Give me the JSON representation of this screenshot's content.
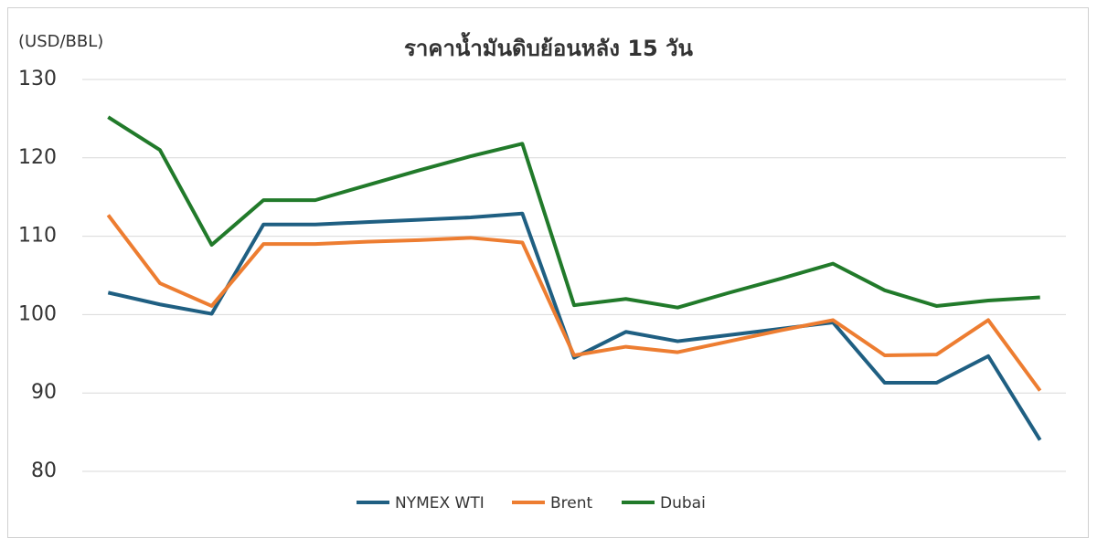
{
  "chart_data": {
    "type": "line",
    "title": "ราคาน้ำมันดิบย้อนหลัง 15 วัน",
    "y_label": "(USD/BBL)",
    "categories": [
      null,
      null,
      null,
      null,
      null,
      null,
      null,
      null,
      null,
      null,
      null,
      null,
      null,
      null,
      null,
      null,
      null,
      null,
      null
    ],
    "series": [
      {
        "name": "NYMEX WTI",
        "color": "#1f5f82",
        "values": [
          102.8,
          101.3,
          100.1,
          111.5,
          111.5,
          111.8,
          112.1,
          112.4,
          112.9,
          94.5,
          97.8,
          96.6,
          97.4,
          98.2,
          99.0,
          91.3,
          91.3,
          94.7,
          84.0
        ]
      },
      {
        "name": "Brent",
        "color": "#ed7d31",
        "values": [
          112.7,
          104.0,
          101.1,
          109.0,
          109.0,
          109.3,
          109.5,
          109.8,
          109.2,
          94.8,
          95.9,
          95.2,
          96.6,
          98.0,
          99.3,
          94.8,
          94.9,
          99.3,
          90.3
        ]
      },
      {
        "name": "Dubai",
        "color": "#217a2a",
        "values": [
          125.2,
          121.0,
          108.9,
          114.6,
          114.6,
          116.5,
          118.4,
          120.2,
          121.8,
          101.2,
          102.0,
          100.9,
          102.8,
          104.6,
          106.5,
          103.1,
          101.1,
          101.8,
          102.2
        ]
      }
    ],
    "ylim": [
      80,
      130
    ],
    "yticks": [
      80,
      90,
      100,
      110,
      120,
      130
    ],
    "grid": true,
    "legend": "bottom"
  }
}
